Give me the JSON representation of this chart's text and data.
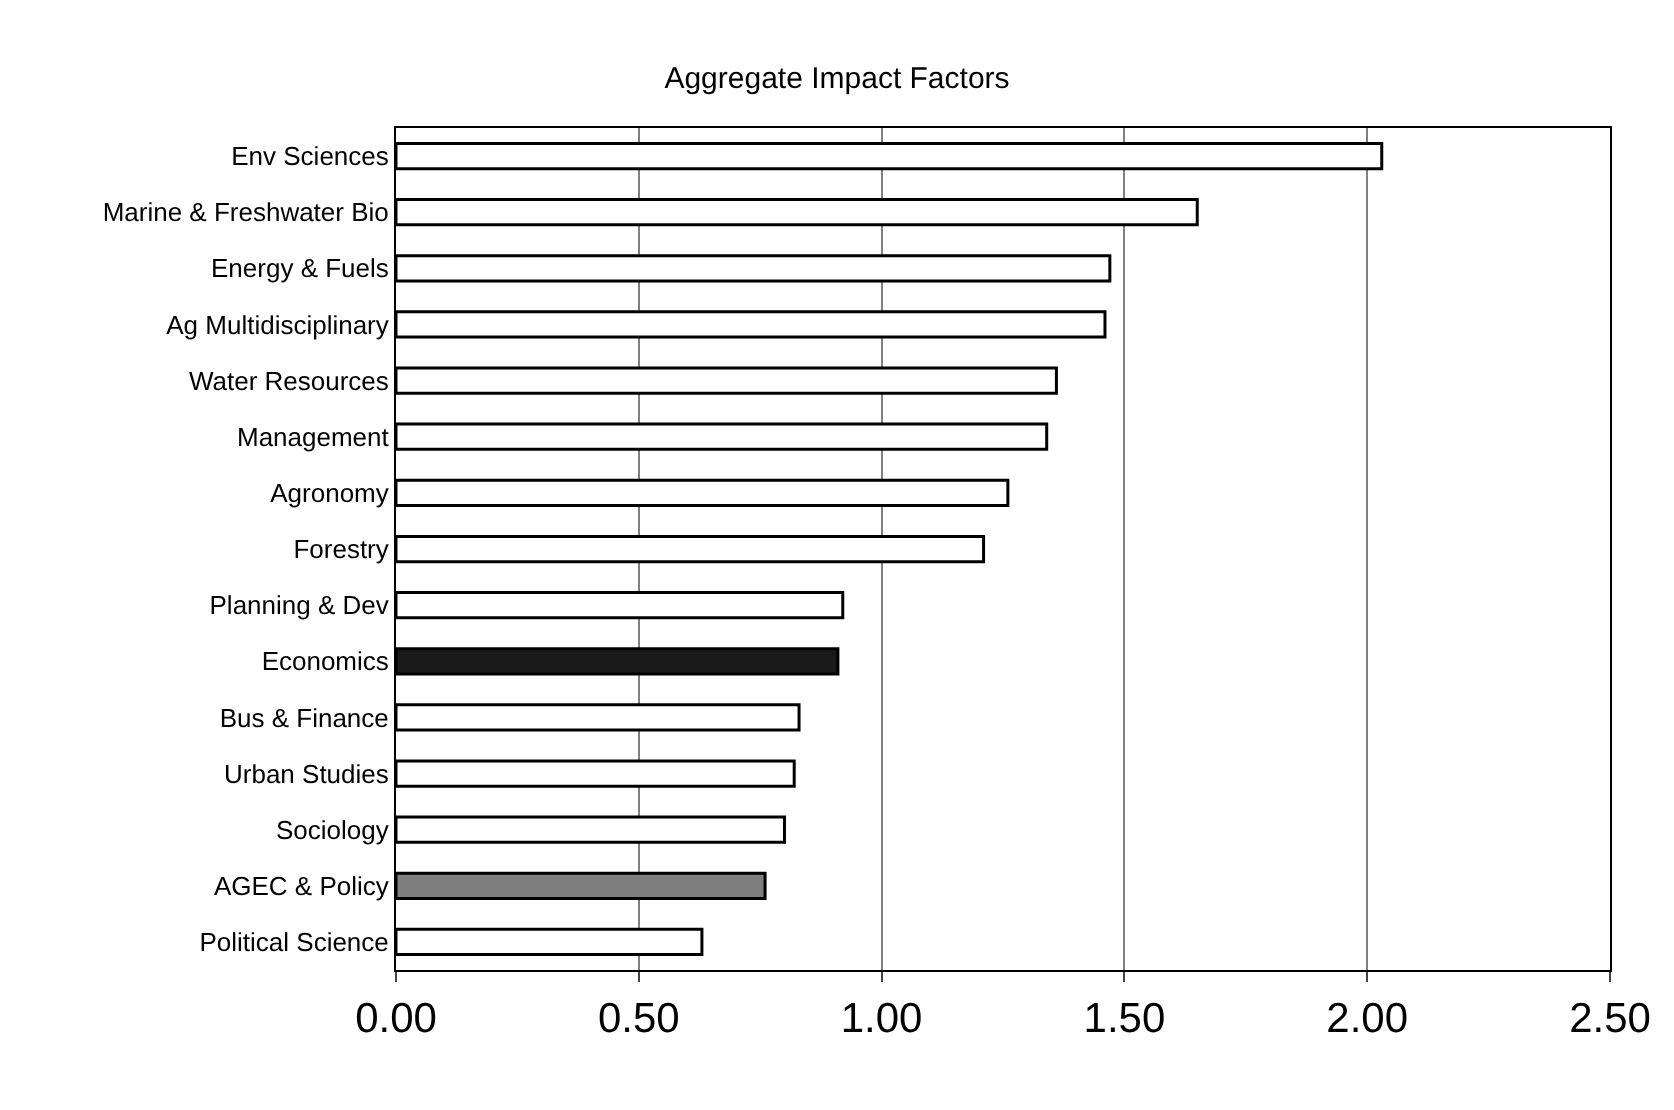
{
  "chart_data": {
    "type": "bar",
    "orientation": "horizontal",
    "title": "Aggregate Impact Factors",
    "categories": [
      "Env Sciences",
      "Marine & Freshwater Bio",
      "Energy & Fuels",
      "Ag Multidisciplinary",
      "Water Resources",
      "Management",
      "Agronomy",
      "Forestry",
      "Planning & Dev",
      "Economics",
      "Bus & Finance",
      "Urban Studies",
      "Sociology",
      "AGEC & Policy",
      "Political Science"
    ],
    "values": [
      2.03,
      1.65,
      1.47,
      1.46,
      1.36,
      1.34,
      1.26,
      1.21,
      0.92,
      0.91,
      0.83,
      0.82,
      0.8,
      0.76,
      0.63
    ],
    "colors": [
      "#ffffff",
      "#ffffff",
      "#ffffff",
      "#ffffff",
      "#ffffff",
      "#ffffff",
      "#ffffff",
      "#ffffff",
      "#ffffff",
      "#1a1a1a",
      "#ffffff",
      "#ffffff",
      "#ffffff",
      "#7f7f7f",
      "#ffffff"
    ],
    "xlim": [
      0,
      2.5
    ],
    "xticks": [
      {
        "value": 0,
        "label": "0.00"
      },
      {
        "value": 0.5,
        "label": "0.50"
      },
      {
        "value": 1,
        "label": "1.00"
      },
      {
        "value": 1.5,
        "label": "1.50"
      },
      {
        "value": 2,
        "label": "2.00"
      },
      {
        "value": 2.5,
        "label": "2.50"
      }
    ],
    "grid": "x"
  }
}
